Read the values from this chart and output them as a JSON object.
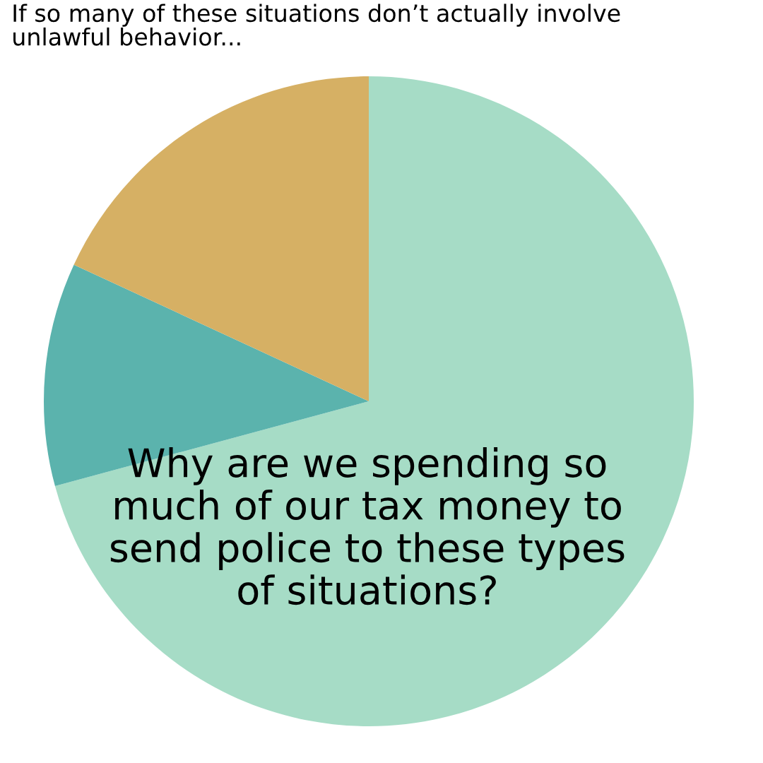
{
  "chart_data": {
    "type": "pie",
    "title": "If so many of these situations don’t actually involve unlawful behavior...",
    "categories": [
      null,
      null,
      null
    ],
    "values": [
      70.8,
      11.1,
      18.1
    ],
    "colors": [
      "#a6dcc6",
      "#5bb3ad",
      "#d6b064"
    ],
    "annotations": [
      "Why are we spending so much of our tax money to send police to these types of situations?"
    ]
  }
}
